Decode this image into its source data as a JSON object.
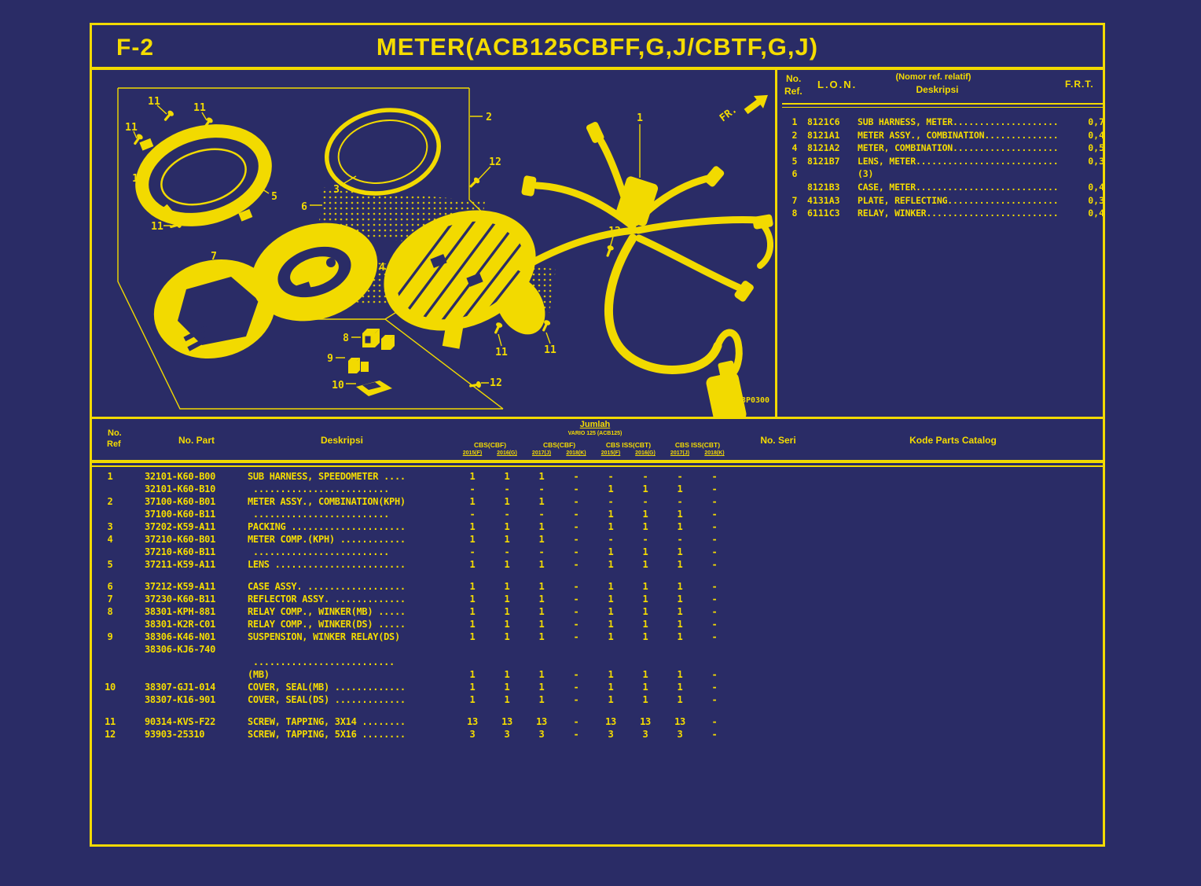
{
  "page": {
    "code": "F-2",
    "title": "METER(ACB125CBFF,G,J/CBTF,G,J)"
  },
  "diagram": {
    "fr_label": "FR.",
    "image_code": "K93P0300",
    "labels": {
      "p1": "1",
      "p2": "2",
      "p3": "3",
      "p4": "4",
      "p5": "5",
      "p6": "6",
      "p7": "7",
      "p8": "8",
      "p9": "9",
      "p10": "10",
      "s11": "11",
      "s12": "12"
    }
  },
  "ref_table": {
    "headers": {
      "no": "No.",
      "ref": "Ref.",
      "lon": "L.O.N.",
      "desc_top": "(Nomor ref. relatif)",
      "desc": "Deskripsi",
      "frt": "F.R.T."
    },
    "rows": [
      {
        "ref": "1",
        "lon": "8121C6",
        "desc": "SUB HARNESS, METER....................",
        "frt": "0,7"
      },
      {
        "ref": "2",
        "lon": "8121A1",
        "desc": "METER ASSY., COMBINATION..............",
        "frt": "0,4"
      },
      {
        "ref": "4",
        "lon": "8121A2",
        "desc": "METER, COMBINATION....................",
        "frt": "0,5"
      },
      {
        "ref": "5",
        "lon": "8121B7",
        "desc": "LENS, METER...........................",
        "frt": "0,3"
      },
      {
        "ref": "6",
        "lon": "",
        "desc": "(3)",
        "frt": ""
      },
      {
        "ref": "",
        "lon": "8121B3",
        "desc": "CASE, METER...........................",
        "frt": "0,4"
      },
      {
        "ref": "7",
        "lon": "4131A3",
        "desc": "PLATE, REFLECTING.....................",
        "frt": "0,3"
      },
      {
        "ref": "8",
        "lon": "6111C3",
        "desc": "RELAY, WINKER.........................",
        "frt": "0,4"
      }
    ]
  },
  "parts_table": {
    "headers": {
      "no": "No.",
      "ref": "Ref",
      "part": "No. Part",
      "desc": "Deskripsi",
      "qty_group": "Jumlah",
      "qty_model": "VARIO 125 (ACB125)",
      "seri": "No. Seri",
      "kode": "Kode Parts Catalog"
    },
    "group_headers": [
      "CBS(CBF)",
      "CBS(CBF)",
      "CBS ISS(CBT)",
      "CBS ISS(CBT)"
    ],
    "year_headers": [
      "2015(F)",
      "2016(G)",
      "2017(J)",
      "2018(K)",
      "2015(F)",
      "2016(G)",
      "2017(J)",
      "2018(K)"
    ],
    "rows": [
      {
        "ref": "1",
        "part": "32101-K60-B00",
        "desc": "SUB HARNESS, SPEEDOMETER ....",
        "qty": [
          "1",
          "1",
          "1",
          "-",
          "-",
          "-",
          "-",
          "-"
        ]
      },
      {
        "ref": "",
        "part": "32101-K60-B10",
        "desc": " .........................",
        "qty": [
          "-",
          "-",
          "-",
          "-",
          "1",
          "1",
          "1",
          "-"
        ]
      },
      {
        "ref": "2",
        "part": "37100-K60-B01",
        "desc": "METER ASSY., COMBINATION(KPH)",
        "qty": [
          "1",
          "1",
          "1",
          "-",
          "-",
          "-",
          "-",
          "-"
        ]
      },
      {
        "ref": "",
        "part": "37100-K60-B11",
        "desc": " .........................",
        "qty": [
          "-",
          "-",
          "-",
          "-",
          "1",
          "1",
          "1",
          "-"
        ]
      },
      {
        "ref": "3",
        "part": "37202-K59-A11",
        "desc": "PACKING .....................",
        "qty": [
          "1",
          "1",
          "1",
          "-",
          "1",
          "1",
          "1",
          "-"
        ]
      },
      {
        "ref": "4",
        "part": "37210-K60-B01",
        "desc": "METER COMP.(KPH) ............",
        "qty": [
          "1",
          "1",
          "1",
          "-",
          "-",
          "-",
          "-",
          "-"
        ]
      },
      {
        "ref": "",
        "part": "37210-K60-B11",
        "desc": " .........................",
        "qty": [
          "-",
          "-",
          "-",
          "-",
          "1",
          "1",
          "1",
          "-"
        ]
      },
      {
        "ref": "5",
        "part": "37211-K59-A11",
        "desc": "LENS ........................",
        "qty": [
          "1",
          "1",
          "1",
          "-",
          "1",
          "1",
          "1",
          "-"
        ]
      },
      {
        "ref": "6",
        "part": "37212-K59-A11",
        "desc": "CASE ASSY. ..................",
        "qty": [
          "1",
          "1",
          "1",
          "-",
          "1",
          "1",
          "1",
          "-"
        ],
        "gap": true
      },
      {
        "ref": "7",
        "part": "37230-K60-B11",
        "desc": "REFLECTOR ASSY. .............",
        "qty": [
          "1",
          "1",
          "1",
          "-",
          "1",
          "1",
          "1",
          "-"
        ]
      },
      {
        "ref": "8",
        "part": "38301-KPH-881",
        "desc": "RELAY COMP., WINKER(MB) .....",
        "qty": [
          "1",
          "1",
          "1",
          "-",
          "1",
          "1",
          "1",
          "-"
        ]
      },
      {
        "ref": "",
        "part": "38301-K2R-C01",
        "desc": "RELAY COMP., WINKER(DS) .....",
        "qty": [
          "1",
          "1",
          "1",
          "-",
          "1",
          "1",
          "1",
          "-"
        ]
      },
      {
        "ref": "9",
        "part": "38306-K46-N01",
        "desc": "SUSPENSION, WINKER RELAY(DS)",
        "qty": [
          "1",
          "1",
          "1",
          "-",
          "1",
          "1",
          "1",
          "-"
        ]
      },
      {
        "ref": "",
        "part": "38306-KJ6-740",
        "desc": "",
        "qty": [
          "",
          "",
          "",
          "",
          "",
          "",
          "",
          ""
        ]
      },
      {
        "ref": "",
        "part": "",
        "desc": " ..........................",
        "qty": [
          "",
          "",
          "",
          "",
          "",
          "",
          "",
          ""
        ]
      },
      {
        "ref": "",
        "part": "",
        "desc": "(MB)",
        "qty": [
          "1",
          "1",
          "1",
          "-",
          "1",
          "1",
          "1",
          "-"
        ]
      },
      {
        "ref": "10",
        "part": "38307-GJ1-014",
        "desc": "COVER, SEAL(MB) .............",
        "qty": [
          "1",
          "1",
          "1",
          "-",
          "1",
          "1",
          "1",
          "-"
        ]
      },
      {
        "ref": "",
        "part": "38307-K16-901",
        "desc": "COVER, SEAL(DS) .............",
        "qty": [
          "1",
          "1",
          "1",
          "-",
          "1",
          "1",
          "1",
          "-"
        ]
      },
      {
        "ref": "11",
        "part": "90314-KVS-F22",
        "desc": "SCREW, TAPPING, 3X14 ........",
        "qty": [
          "13",
          "13",
          "13",
          "-",
          "13",
          "13",
          "13",
          "-"
        ],
        "gap": true
      },
      {
        "ref": "12",
        "part": "93903-25310",
        "desc": "SCREW, TAPPING, 5X16 ........",
        "qty": [
          "3",
          "3",
          "3",
          "-",
          "3",
          "3",
          "3",
          "-"
        ]
      }
    ]
  }
}
